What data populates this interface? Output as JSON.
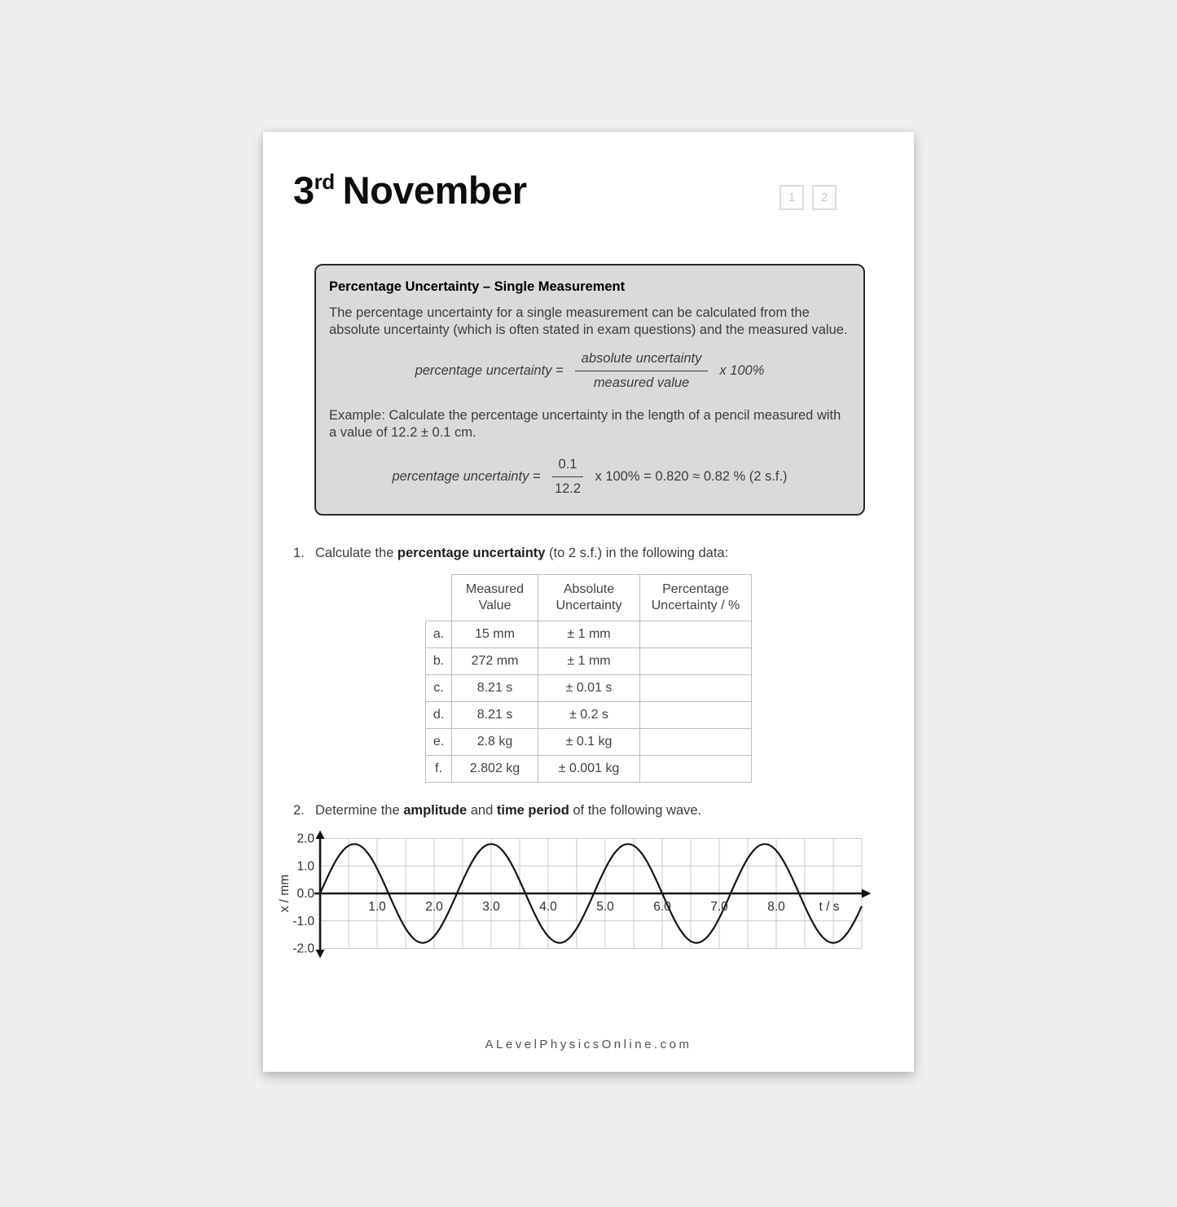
{
  "page": {
    "title": {
      "day": "3",
      "suffix": "rd",
      "month": "November"
    },
    "page_numbers": [
      "1",
      "2"
    ],
    "info_box": {
      "heading": "Percentage Uncertainty – Single Measurement",
      "body": "The percentage uncertainty for a single measurement can be calculated from the absolute uncertainty (which is often stated in exam questions) and the measured value.",
      "formula": {
        "lhs": "percentage uncertainty =",
        "numerator": "absolute uncertainty",
        "denominator": "measured value",
        "rhs": "x 100%"
      },
      "example_text": "Example: Calculate the percentage uncertainty in the length of a pencil measured with a value of 12.2 ± 0.1 cm.",
      "example_formula": {
        "lhs": "percentage uncertainty =",
        "numerator": "0.1",
        "denominator": "12.2",
        "rhs": "x 100% = 0.820 ≈ 0.82 % (2 s.f.)"
      }
    },
    "q1": {
      "number": "1.",
      "part1": "Calculate the ",
      "bold": "percentage uncertainty",
      "part2": " (to 2 s.f.) in the following data:"
    },
    "table": {
      "headers": [
        "Measured Value",
        "Absolute Uncertainty",
        "Percentage Uncertainty / %"
      ],
      "rows": [
        {
          "label": "a.",
          "measured": "15 mm",
          "uncertainty": "± 1 mm",
          "percentage": ""
        },
        {
          "label": "b.",
          "measured": "272 mm",
          "uncertainty": "± 1 mm",
          "percentage": ""
        },
        {
          "label": "c.",
          "measured": "8.21 s",
          "uncertainty": "± 0.01 s",
          "percentage": ""
        },
        {
          "label": "d.",
          "measured": "8.21 s",
          "uncertainty": "± 0.2 s",
          "percentage": ""
        },
        {
          "label": "e.",
          "measured": "2.8 kg",
          "uncertainty": "± 0.1 kg",
          "percentage": ""
        },
        {
          "label": "f.",
          "measured": "2.802 kg",
          "uncertainty": "± 0.001 kg",
          "percentage": ""
        }
      ]
    },
    "q2": {
      "number": "2.",
      "part1": "Determine the ",
      "bold1": "amplitude",
      "part2": " and ",
      "bold2": "time period",
      "part3": " of the following wave."
    },
    "footer": "ALevelPhysicsOnline.com"
  },
  "chart_data": {
    "type": "line",
    "title": "",
    "xlabel": "t / s",
    "ylabel": "x / mm",
    "xlim": [
      0,
      9.5
    ],
    "ylim": [
      -2.0,
      2.0
    ],
    "x_tick_labels": [
      "1.0",
      "2.0",
      "3.0",
      "4.0",
      "5.0",
      "6.0",
      "7.0",
      "8.0"
    ],
    "y_tick_labels": [
      "2.0",
      "1.0",
      "0.0",
      "-1.0",
      "-2.0"
    ],
    "x_grid_step_s": 0.5,
    "y_grid_step_mm": 1.0,
    "grid": true,
    "wave": {
      "shape": "sine",
      "amplitude_mm": 1.8,
      "period_s": 2.4,
      "phase": "starts at origin rising",
      "equation": "x = 1.8 sin(2*pi*t / 2.4)",
      "peaks_at_t_s": [
        0.6,
        3.0,
        5.4,
        7.8
      ],
      "zero_crossings_t_s": [
        0,
        1.2,
        2.4,
        3.6,
        4.8,
        6.0,
        7.2,
        8.4
      ]
    }
  }
}
